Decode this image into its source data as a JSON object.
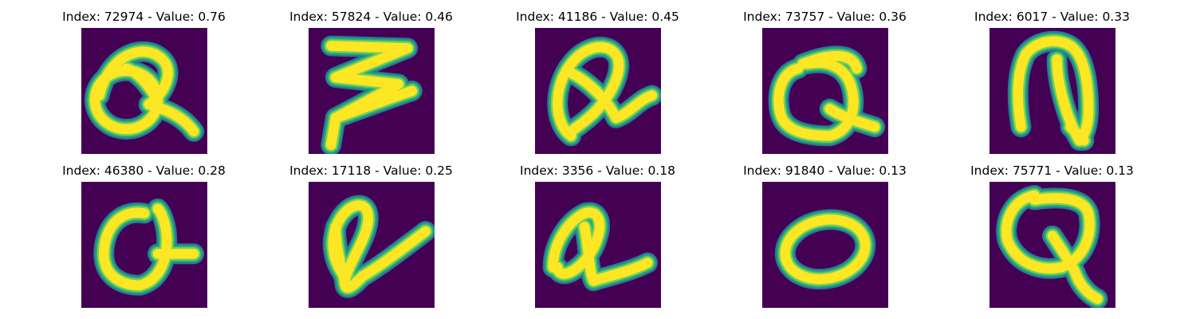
{
  "colors": {
    "background": "#440154",
    "foreground": "#fde725",
    "edge_light": "#7ad151",
    "edge_mid": "#22a884",
    "edge_dark": "#2a788e"
  },
  "panels": [
    {
      "title": "Index: 72974 - Value: 0.76",
      "glyph": "handwritten-q-1"
    },
    {
      "title": "Index: 57824 - Value: 0.46",
      "glyph": "handwritten-z-zigzag"
    },
    {
      "title": "Index: 41186 - Value: 0.45",
      "glyph": "handwritten-q-2"
    },
    {
      "title": "Index: 73757 - Value: 0.36",
      "glyph": "handwritten-q-3"
    },
    {
      "title": "Index: 6017 - Value: 0.33",
      "glyph": "handwritten-n-loop"
    },
    {
      "title": "Index: 46380 - Value: 0.28",
      "glyph": "handwritten-q-4"
    },
    {
      "title": "Index: 17118 - Value: 0.25",
      "glyph": "handwritten-l-loop"
    },
    {
      "title": "Index: 3356 - Value: 0.18",
      "glyph": "handwritten-l-loop-2"
    },
    {
      "title": "Index: 91840 - Value: 0.13",
      "glyph": "handwritten-o"
    },
    {
      "title": "Index: 75771 - Value: 0.13",
      "glyph": "handwritten-q-5"
    }
  ]
}
